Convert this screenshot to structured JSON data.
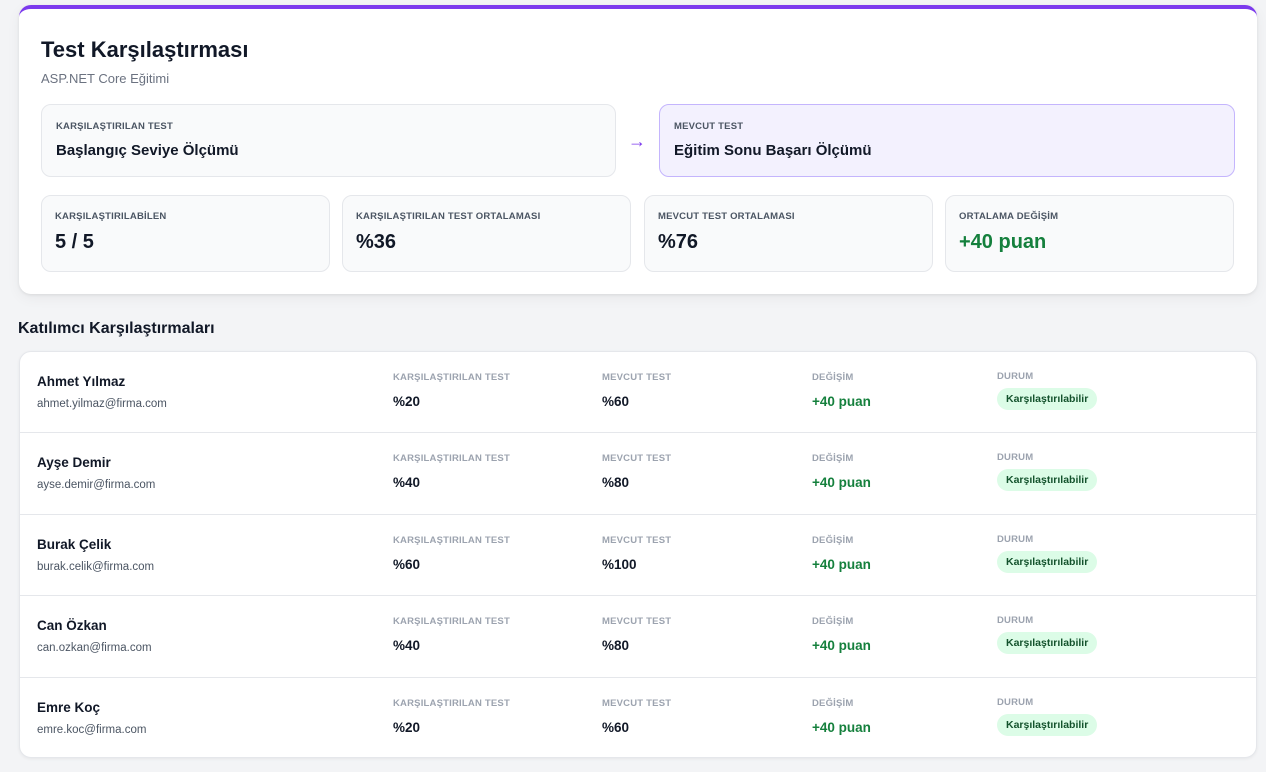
{
  "header": {
    "title": "Test Karşılaştırması",
    "subtitle": "ASP.NET Core Eğitimi"
  },
  "tests": {
    "compared": {
      "label": "KARŞILAŞTIRILAN TEST",
      "name": "Başlangıç Seviye Ölçümü"
    },
    "arrow": "→",
    "current": {
      "label": "MEVCUT TEST",
      "name": "Eğitim Sonu Başarı Ölçümü"
    }
  },
  "stats": [
    {
      "label": "KARŞILAŞTIRILABİLEN",
      "value": "5 / 5"
    },
    {
      "label": "KARŞILAŞTIRILAN TEST ORTALAMASI",
      "value": "%36"
    },
    {
      "label": "MEVCUT TEST ORTALAMASI",
      "value": "%76"
    },
    {
      "label": "ORTALAMA DEĞİŞİM",
      "value": "+40 puan"
    }
  ],
  "section_title": "Katılımcı Karşılaştırmaları",
  "column_labels": {
    "compared": "KARŞILAŞTIRILAN TEST",
    "current": "MEVCUT TEST",
    "change": "DEĞİŞİM",
    "status": "DURUM"
  },
  "participants": [
    {
      "name": "Ahmet Yılmaz",
      "email": "ahmet.yilmaz@firma.com",
      "compared": "%20",
      "current": "%60",
      "change": "+40 puan",
      "status": "Karşılaştırılabilir"
    },
    {
      "name": "Ayşe Demir",
      "email": "ayse.demir@firma.com",
      "compared": "%40",
      "current": "%80",
      "change": "+40 puan",
      "status": "Karşılaştırılabilir"
    },
    {
      "name": "Burak Çelik",
      "email": "burak.celik@firma.com",
      "compared": "%60",
      "current": "%100",
      "change": "+40 puan",
      "status": "Karşılaştırılabilir"
    },
    {
      "name": "Can Özkan",
      "email": "can.ozkan@firma.com",
      "compared": "%40",
      "current": "%80",
      "change": "+40 puan",
      "status": "Karşılaştırılabilir"
    },
    {
      "name": "Emre Koç",
      "email": "emre.koc@firma.com",
      "compared": "%20",
      "current": "%60",
      "change": "+40 puan",
      "status": "Karşılaştırılabilir"
    }
  ],
  "colors": {
    "accent": "#7c3aed",
    "positive": "#15803d",
    "badge_bg": "#dcfce7"
  }
}
